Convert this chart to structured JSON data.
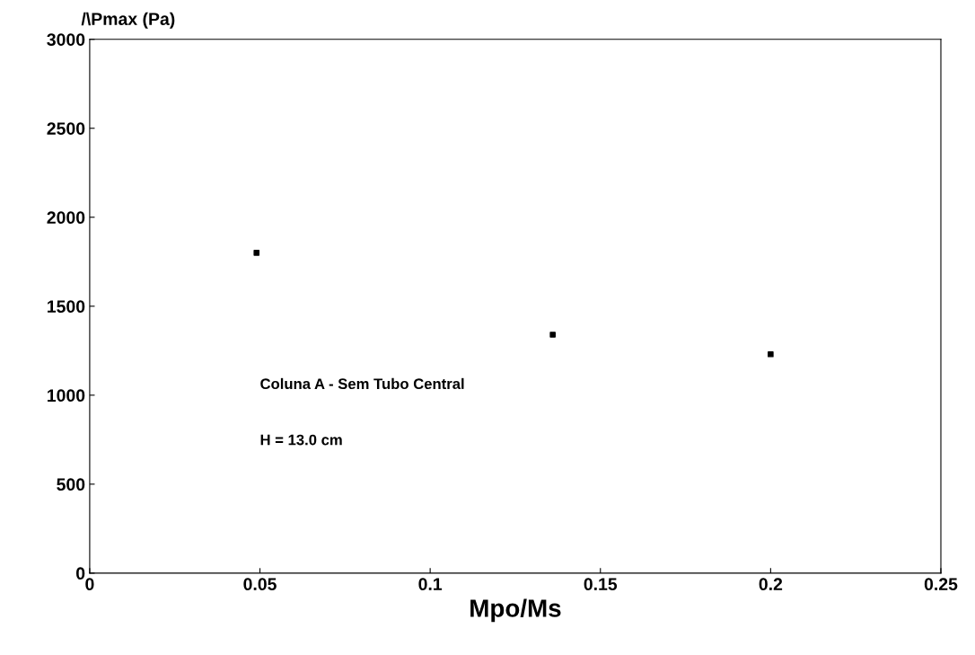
{
  "chart_data": {
    "type": "scatter",
    "xlabel": "Mpo/Ms",
    "ylabel": "/\\Pmax (Pa)",
    "x": [
      0.049,
      0.136,
      0.2
    ],
    "series": [
      {
        "color": "#000000",
        "values": [
          1800,
          1340,
          1230
        ]
      }
    ],
    "marker": "square",
    "xlim": [
      0,
      0.25
    ],
    "xticks": [
      0,
      0.05,
      0.1,
      0.15,
      0.2,
      0.25
    ],
    "ylim": [
      0,
      3000
    ],
    "yticks": [
      0,
      500,
      1000,
      1500,
      2000,
      2500,
      3000
    ],
    "grid": false,
    "annotations": [
      "Coluna A - Sem Tubo Central",
      "H = 13.0 cm"
    ]
  }
}
